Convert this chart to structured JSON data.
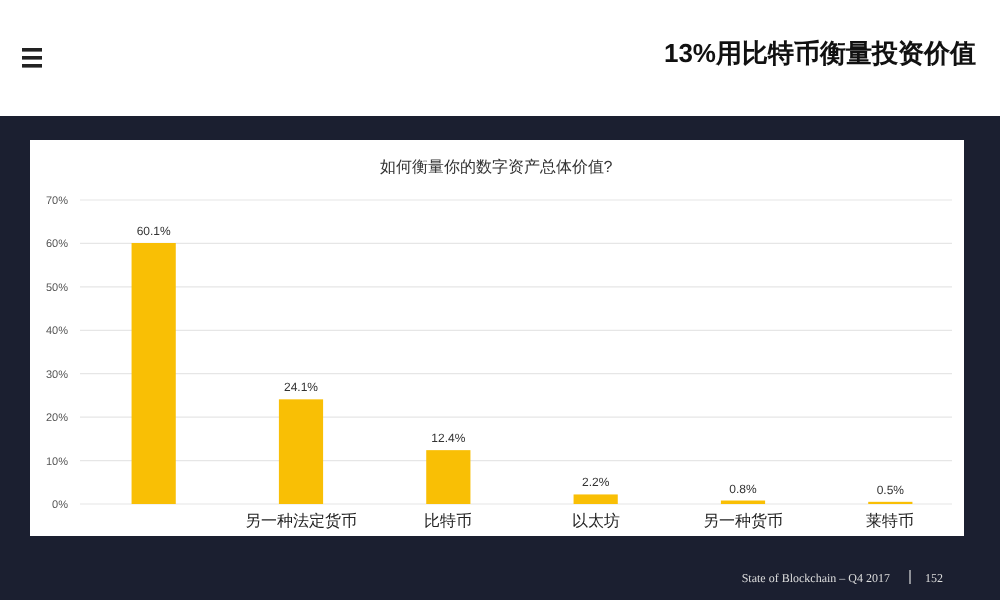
{
  "chart_data": {
    "type": "bar",
    "title": "如何衡量你的数字资产总体价值?",
    "categories": [
      null,
      "另一种法定货币",
      "比特币",
      "以太坊",
      "另一种货币",
      "莱特币"
    ],
    "values": [
      60.1,
      24.1,
      12.4,
      2.2,
      0.8,
      0.5
    ],
    "value_labels": [
      "60.1%",
      "24.1%",
      "12.4%",
      "2.2%",
      "0.8%",
      "0.5%"
    ],
    "color": "#f9bf05",
    "ylim": [
      0,
      70
    ],
    "yticks": [
      {
        "value": 0,
        "label": "0%"
      },
      {
        "value": 10,
        "label": "10%"
      },
      {
        "value": 20,
        "label": "20%"
      },
      {
        "value": 30,
        "label": "30%"
      },
      {
        "value": 40,
        "label": "40%"
      },
      {
        "value": 50,
        "label": "50%"
      },
      {
        "value": 60,
        "label": "60%"
      },
      {
        "value": 70,
        "label": "70%"
      }
    ],
    "grid": "y",
    "annotations": [
      "13%用比特币衡量投资价值",
      "State of Blockchain – Q4 2017",
      "152"
    ]
  }
}
